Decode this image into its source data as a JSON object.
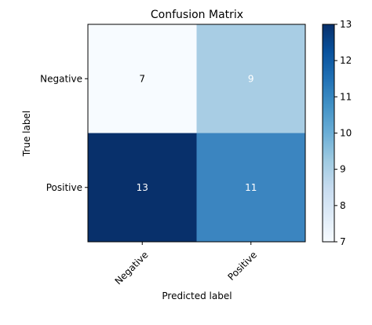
{
  "chart_data": {
    "type": "heatmap",
    "title": "Confusion Matrix",
    "xlabel": "Predicted label",
    "ylabel": "True label",
    "x_categories": [
      "Negative",
      "Positive"
    ],
    "y_categories": [
      "Negative",
      "Positive"
    ],
    "values": [
      [
        7,
        9
      ],
      [
        13,
        11
      ]
    ],
    "colormap": "Blues",
    "color_range": [
      7,
      13
    ],
    "colorbar_ticks": [
      7,
      8,
      9,
      10,
      11,
      12,
      13
    ],
    "cell_text_colors": [
      [
        "#000000",
        "#ffffff"
      ],
      [
        "#ffffff",
        "#ffffff"
      ]
    ],
    "cell_colors": [
      [
        "#f7fbff",
        "#a8cde4"
      ],
      [
        "#08306b",
        "#3b85c0"
      ]
    ],
    "x_tick_rotation_deg": 45,
    "grid": false,
    "colorbar_position": "right"
  }
}
